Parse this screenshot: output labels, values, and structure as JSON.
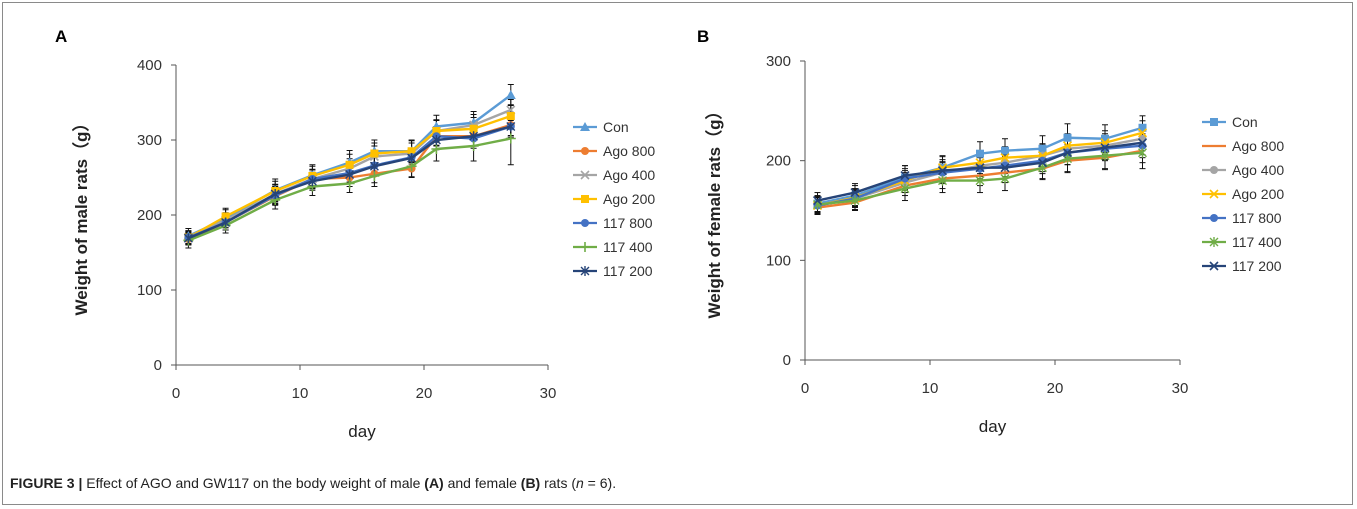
{
  "caption": {
    "label": "FIGURE 3 |",
    "p1": " Effect of AGO and GW117 on the body weight of male ",
    "a": "(A)",
    "p2": " and female ",
    "b": "(B)",
    "p3": " rats (",
    "n": "n",
    "p4": " = 6)."
  },
  "chart_data": [
    {
      "panel": "A",
      "type": "line",
      "xlabel": "day",
      "ylabel": "Weight of male rats（g）",
      "xlim": [
        0,
        30
      ],
      "ylim": [
        0,
        400
      ],
      "xticks": [
        0,
        10,
        20,
        30
      ],
      "yticks": [
        0,
        100,
        200,
        300,
        400
      ],
      "x": [
        1,
        4,
        8,
        11,
        14,
        16,
        19,
        21,
        24,
        27
      ],
      "legend_position": "right",
      "series": [
        {
          "name": "Con",
          "color": "#5b9bd5",
          "marker": "triangle",
          "values": [
            172,
            195,
            233,
            253,
            270,
            285,
            285,
            318,
            323,
            360
          ],
          "error": [
            10,
            12,
            15,
            14,
            16,
            15,
            15,
            15,
            15,
            14
          ]
        },
        {
          "name": "Ago 800",
          "color": "#ed7d31",
          "marker": "circle",
          "values": [
            168,
            190,
            225,
            248,
            250,
            255,
            262,
            305,
            305,
            320
          ],
          "error": [
            8,
            10,
            12,
            12,
            12,
            12,
            12,
            12,
            13,
            14
          ]
        },
        {
          "name": "Ago 400",
          "color": "#a5a5a5",
          "marker": "x",
          "values": [
            170,
            193,
            228,
            248,
            262,
            278,
            282,
            312,
            320,
            340
          ],
          "error": [
            9,
            10,
            13,
            13,
            13,
            14,
            14,
            14,
            14,
            14
          ]
        },
        {
          "name": "Ago 200",
          "color": "#ffc000",
          "marker": "square",
          "values": [
            170,
            198,
            232,
            252,
            267,
            282,
            285,
            312,
            315,
            332
          ],
          "error": [
            9,
            11,
            13,
            13,
            14,
            14,
            14,
            15,
            15,
            15
          ]
        },
        {
          "name": "117 800",
          "color": "#4472c4",
          "marker": "circle",
          "values": [
            170,
            190,
            226,
            248,
            256,
            266,
            277,
            305,
            302,
            318
          ],
          "error": [
            8,
            10,
            12,
            12,
            12,
            12,
            12,
            13,
            13,
            14
          ]
        },
        {
          "name": "117 400",
          "color": "#70ad47",
          "marker": "plus",
          "values": [
            166,
            186,
            220,
            238,
            242,
            252,
            265,
            288,
            292,
            302
          ],
          "error": [
            10,
            10,
            12,
            12,
            12,
            14,
            14,
            16,
            20,
            35
          ]
        },
        {
          "name": "117 200",
          "color": "#264478",
          "marker": "asterisk",
          "values": [
            169,
            190,
            228,
            245,
            254,
            265,
            276,
            300,
            305,
            318
          ],
          "error": [
            8,
            10,
            12,
            12,
            12,
            12,
            12,
            13,
            13,
            14
          ]
        }
      ]
    },
    {
      "panel": "B",
      "type": "line",
      "xlabel": "day",
      "ylabel": "Weight of female rats（g）",
      "xlim": [
        0,
        30
      ],
      "ylim": [
        0,
        300
      ],
      "xticks": [
        0,
        10,
        20,
        30
      ],
      "yticks": [
        0,
        100,
        200,
        300
      ],
      "x": [
        1,
        4,
        8,
        11,
        14,
        16,
        19,
        21,
        24,
        27
      ],
      "legend_position": "right",
      "series": [
        {
          "name": "Con",
          "color": "#5b9bd5",
          "marker": "square",
          "values": [
            157,
            165,
            183,
            193,
            207,
            210,
            212,
            223,
            222,
            233
          ],
          "error": [
            8,
            10,
            12,
            12,
            12,
            12,
            13,
            14,
            14,
            12
          ]
        },
        {
          "name": "Ago 800",
          "color": "#ed7d31",
          "marker": "none",
          "values": [
            153,
            158,
            175,
            182,
            185,
            188,
            192,
            200,
            203,
            210
          ],
          "error": [
            7,
            8,
            10,
            10,
            10,
            10,
            10,
            11,
            11,
            12
          ]
        },
        {
          "name": "Ago 400",
          "color": "#a5a5a5",
          "marker": "circle",
          "values": [
            155,
            162,
            178,
            188,
            195,
            198,
            205,
            212,
            215,
            222
          ],
          "error": [
            8,
            8,
            10,
            10,
            11,
            11,
            11,
            12,
            12,
            12
          ]
        },
        {
          "name": "Ago 200",
          "color": "#ffc000",
          "marker": "x",
          "values": [
            155,
            163,
            180,
            193,
            198,
            203,
            205,
            215,
            218,
            228
          ],
          "error": [
            8,
            9,
            10,
            11,
            11,
            11,
            12,
            12,
            12,
            12
          ]
        },
        {
          "name": "117 800",
          "color": "#4472c4",
          "marker": "circle",
          "values": [
            155,
            162,
            182,
            188,
            192,
            195,
            200,
            208,
            212,
            215
          ],
          "error": [
            8,
            9,
            10,
            11,
            11,
            11,
            11,
            12,
            12,
            12
          ]
        },
        {
          "name": "117 400",
          "color": "#70ad47",
          "marker": "asterisk",
          "values": [
            156,
            160,
            172,
            180,
            180,
            182,
            193,
            202,
            205,
            208
          ],
          "error": [
            8,
            9,
            12,
            12,
            12,
            12,
            12,
            14,
            14,
            16
          ]
        },
        {
          "name": "117 200",
          "color": "#264478",
          "marker": "x",
          "values": [
            160,
            168,
            185,
            190,
            193,
            193,
            198,
            208,
            213,
            218
          ],
          "error": [
            8,
            9,
            10,
            11,
            11,
            11,
            11,
            12,
            12,
            12
          ]
        }
      ]
    }
  ]
}
